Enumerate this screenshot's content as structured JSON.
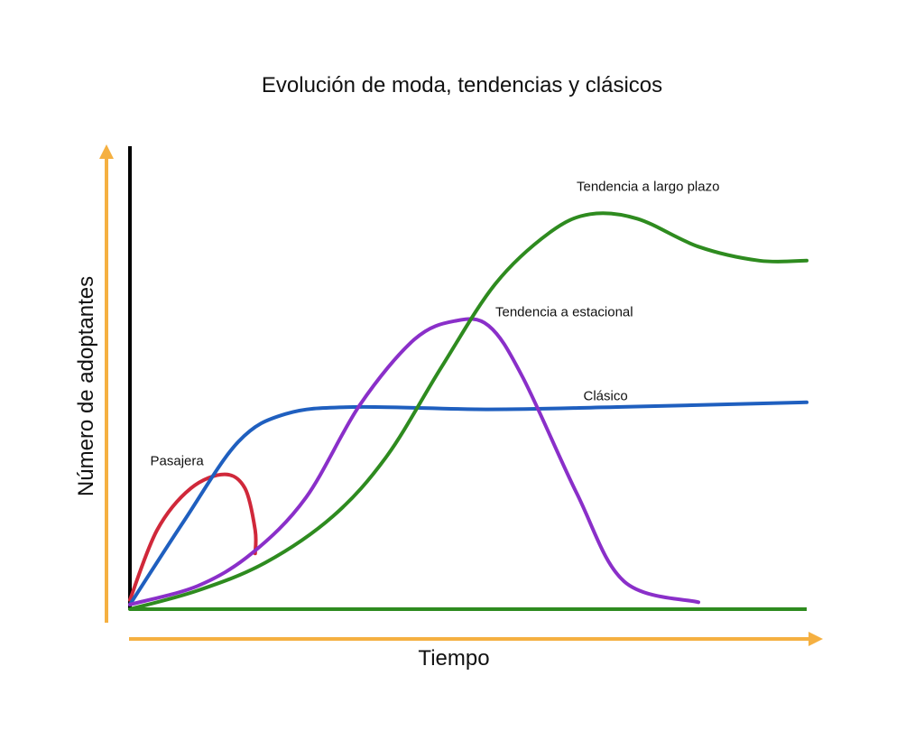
{
  "chart_data": {
    "type": "line",
    "title": "Evolución de moda, tendencias y clásicos",
    "xlabel": "Tiempo",
    "ylabel": "Número de adoptantes",
    "xlim": [
      0,
      100
    ],
    "ylim": [
      0,
      100
    ],
    "grid": false,
    "legend": "none",
    "colors": {
      "axis_arrows": "#f5b041",
      "axis_lines": "#000000",
      "baseline": "#2e8b1f"
    },
    "series": [
      {
        "name": "Pasajera",
        "color": "#d0283a",
        "points": [
          [
            0,
            2
          ],
          [
            4,
            17
          ],
          [
            9,
            26
          ],
          [
            14,
            29
          ],
          [
            17,
            26
          ],
          [
            18.5,
            17
          ],
          [
            18.5,
            12
          ]
        ]
      },
      {
        "name": "Clásico",
        "color": "#1f5fbf",
        "points": [
          [
            0,
            1
          ],
          [
            8,
            19
          ],
          [
            16,
            36
          ],
          [
            23,
            42
          ],
          [
            33,
            43.5
          ],
          [
            53,
            43
          ],
          [
            72,
            43.5
          ],
          [
            100,
            44.5
          ]
        ]
      },
      {
        "name": "Tendencia a estacional",
        "color": "#8a2fc9",
        "points": [
          [
            0,
            1
          ],
          [
            10,
            5
          ],
          [
            18,
            12
          ],
          [
            26,
            24
          ],
          [
            34,
            44
          ],
          [
            42,
            58
          ],
          [
            48,
            62
          ],
          [
            53,
            61
          ],
          [
            58,
            50
          ],
          [
            66,
            25
          ],
          [
            73,
            6
          ],
          [
            84,
            1.5
          ]
        ]
      },
      {
        "name": "Tendencia a largo plazo",
        "color": "#2e8b1f",
        "points": [
          [
            0,
            0
          ],
          [
            10,
            4
          ],
          [
            20,
            10
          ],
          [
            30,
            20
          ],
          [
            38,
            33
          ],
          [
            46,
            52
          ],
          [
            54,
            70
          ],
          [
            62,
            81
          ],
          [
            68,
            85
          ],
          [
            75,
            84
          ],
          [
            84,
            78
          ],
          [
            93,
            75
          ],
          [
            100,
            75
          ]
        ]
      }
    ],
    "labels": [
      {
        "series": "Pasajera",
        "text": "Pasajera",
        "x": 3,
        "y": 31
      },
      {
        "series": "Tendencia a largo plazo",
        "text": "Tendencia a largo plazo",
        "x": 66,
        "y": 90
      },
      {
        "series": "Tendencia a estacional",
        "text": "Tendencia a estacional",
        "x": 54,
        "y": 63
      },
      {
        "series": "Clásico",
        "text": "Clásico",
        "x": 67,
        "y": 45
      }
    ]
  }
}
